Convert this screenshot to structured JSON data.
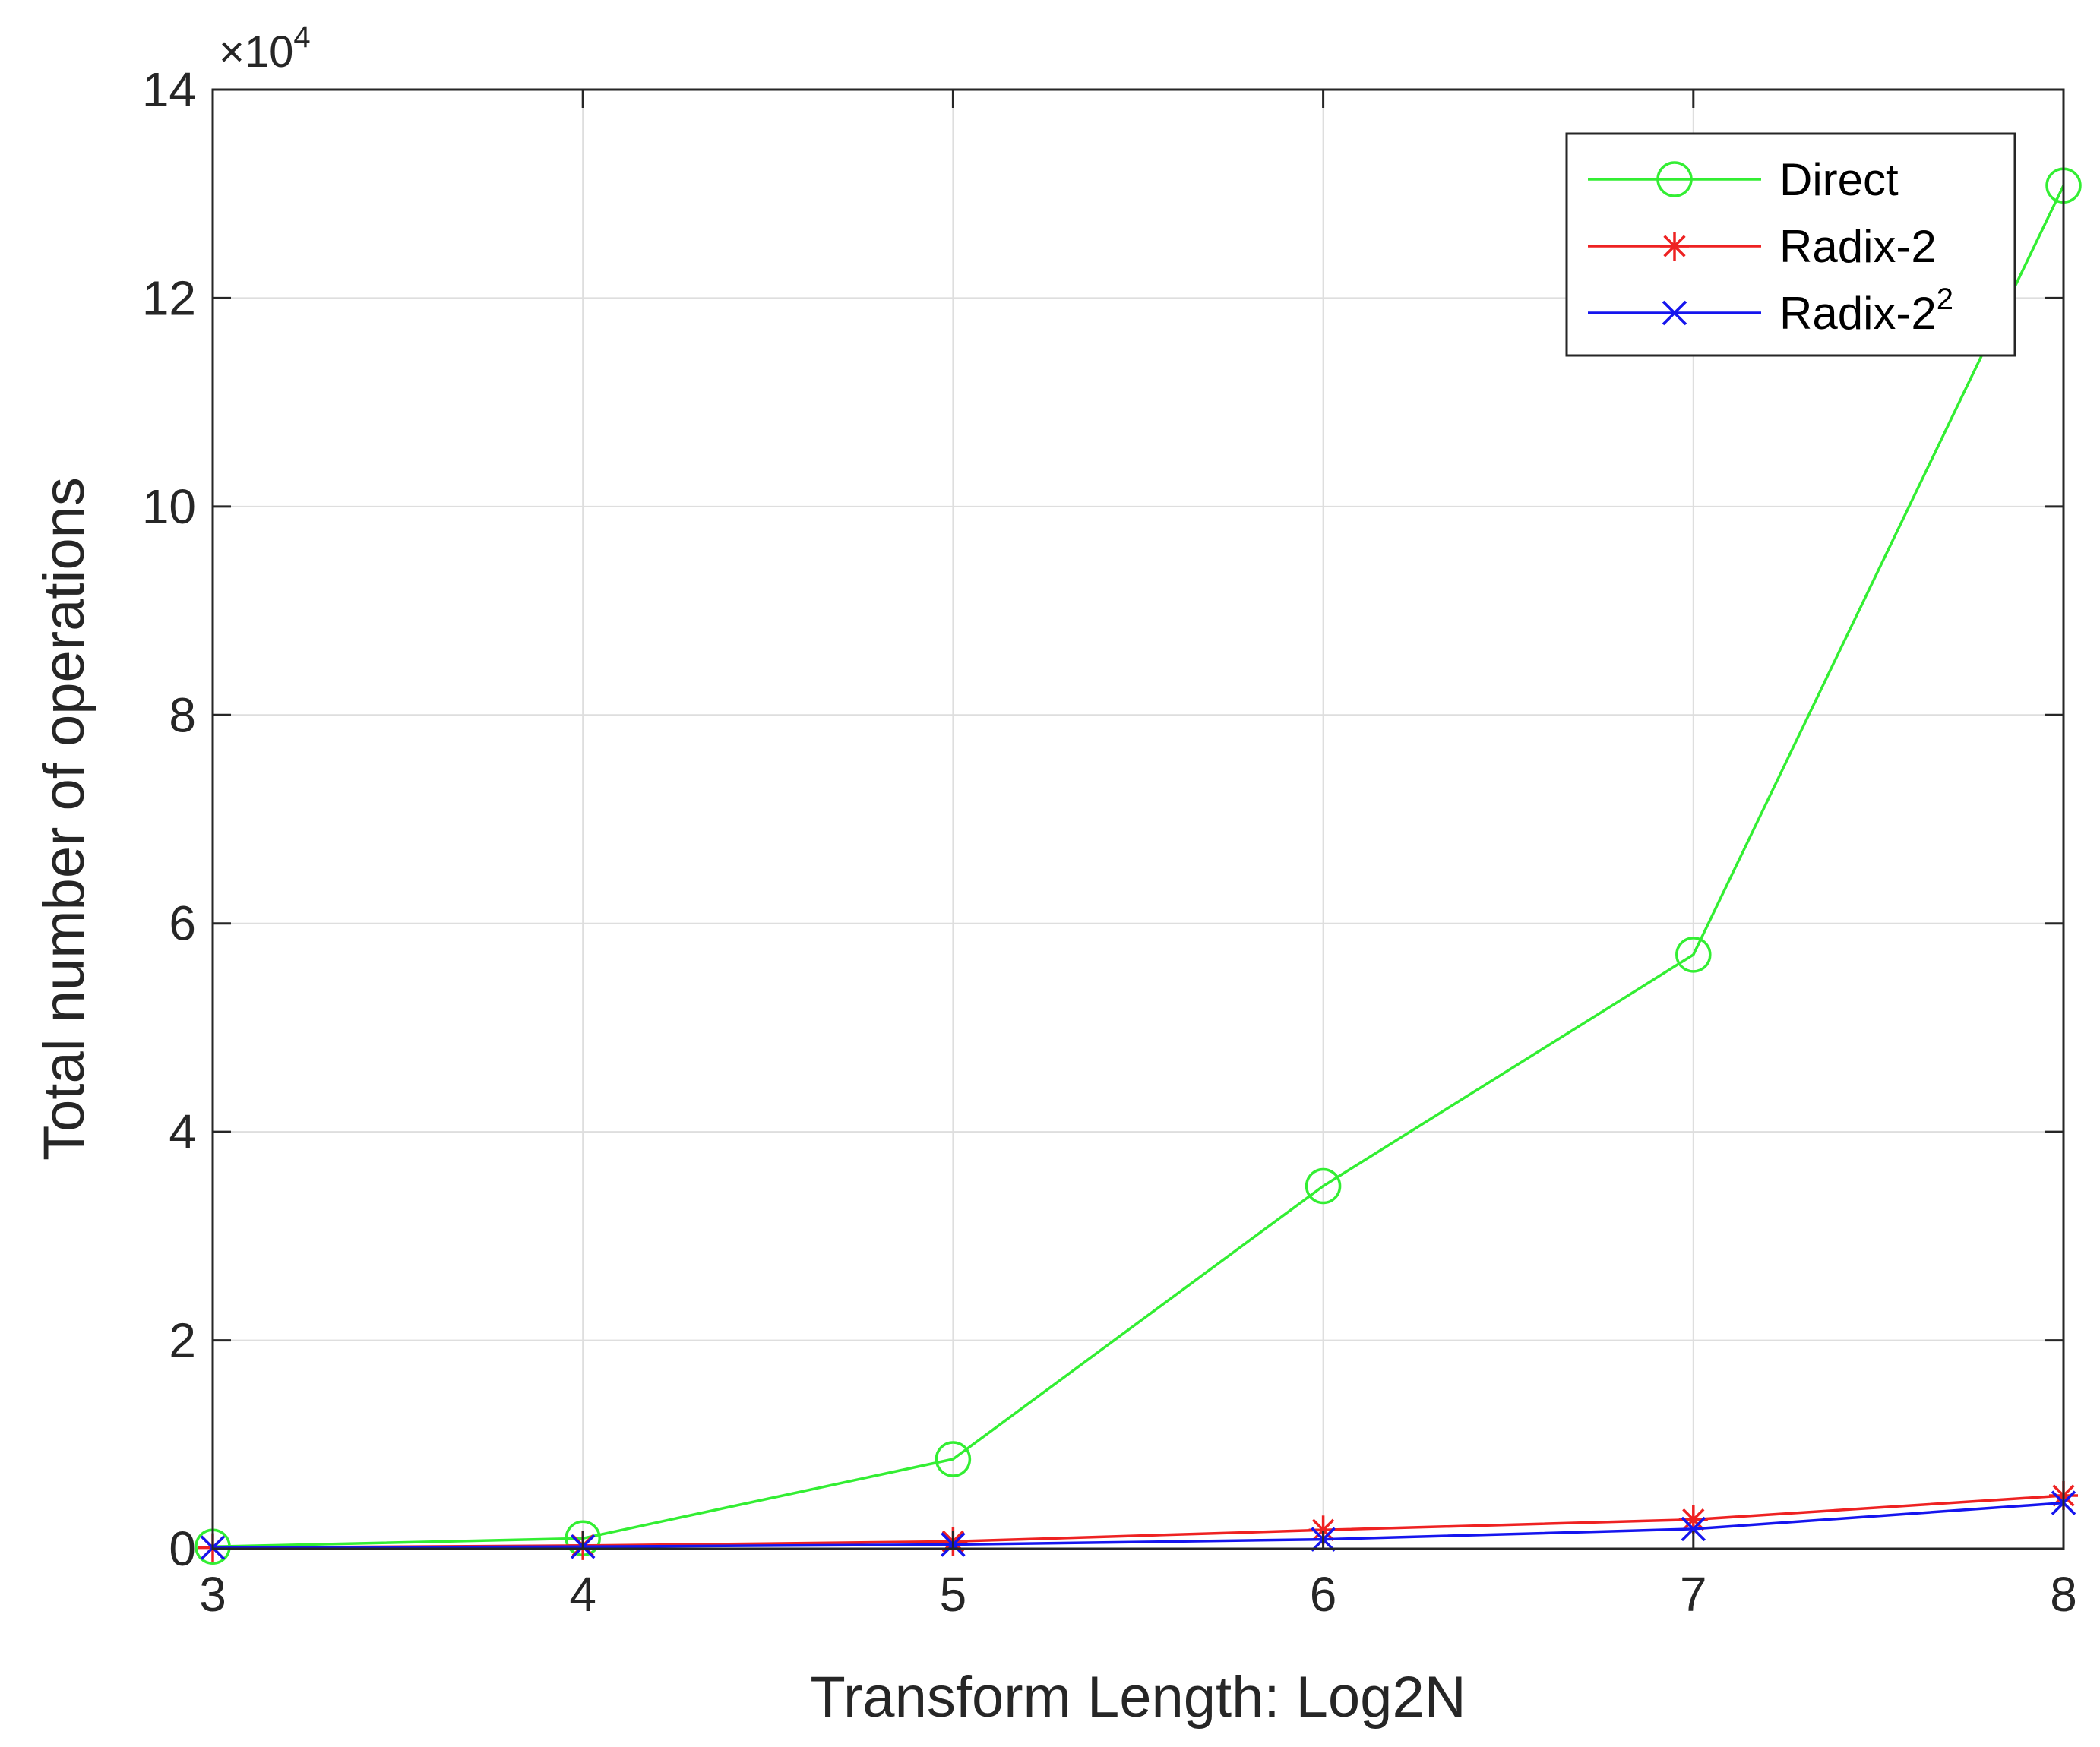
{
  "chart_data": {
    "type": "line",
    "title": "",
    "xlabel": "Transform Length: Log2N",
    "ylabel": "Total number of operations",
    "xlim": [
      3,
      8
    ],
    "ylim": [
      0,
      140000
    ],
    "x_ticks": [
      3,
      4,
      5,
      6,
      7,
      8
    ],
    "y_ticks": [
      0,
      20000,
      40000,
      60000,
      80000,
      100000,
      120000,
      140000
    ],
    "y_tick_labels": [
      "0",
      "2",
      "4",
      "6",
      "8",
      "10",
      "12",
      "14"
    ],
    "y_exponent": {
      "base": "×10",
      "power": "4"
    },
    "grid": true,
    "legend_position": "top-right",
    "x": [
      3,
      4,
      5,
      6,
      7,
      8
    ],
    "series": [
      {
        "name": "Direct",
        "name_sup": "",
        "color": "#33ee33",
        "marker": "circle",
        "values": [
          200,
          1000,
          8600,
          34800,
          57000,
          130800
        ]
      },
      {
        "name": "Radix-2",
        "name_sup": "",
        "color": "#ee2222",
        "marker": "asterisk",
        "values": [
          100,
          300,
          700,
          1800,
          2800,
          5100
        ]
      },
      {
        "name": "Radix-2",
        "name_sup": "2",
        "color": "#1515ee",
        "marker": "cross",
        "values": [
          100,
          200,
          400,
          900,
          1900,
          4400
        ]
      }
    ]
  }
}
